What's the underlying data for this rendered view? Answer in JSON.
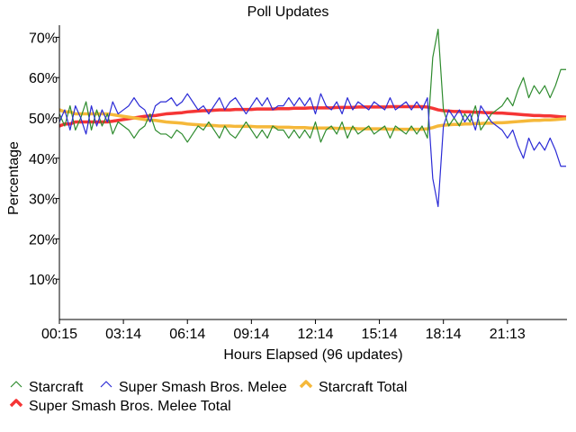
{
  "chart_data": {
    "type": "line",
    "title": "Poll Updates",
    "xlabel": "Hours Elapsed (96 updates)",
    "ylabel": "Percentage",
    "ylim": [
      0,
      73
    ],
    "y_ticks": [
      10,
      20,
      30,
      40,
      50,
      60,
      70
    ],
    "y_tick_labels": [
      "10%",
      "20%",
      "30%",
      "40%",
      "50%",
      "60%",
      "70%"
    ],
    "x_ticks": [
      0,
      12,
      24,
      36,
      48,
      60,
      72,
      84
    ],
    "x_tick_labels": [
      "00:15",
      "03:14",
      "06:14",
      "09:14",
      "12:14",
      "15:14",
      "18:14",
      "21:13"
    ],
    "x_range": [
      0,
      95
    ],
    "grid": false,
    "legend_position": "bottom",
    "series": [
      {
        "name": "Starcraft",
        "color": "#2e8b2e",
        "values": [
          51,
          48,
          53,
          47,
          50,
          54,
          47,
          52,
          48,
          51,
          46,
          49,
          48,
          47,
          45,
          47,
          48,
          51,
          47,
          46,
          46,
          45,
          47,
          46,
          44,
          46,
          48,
          47,
          49,
          47,
          45,
          48,
          46,
          45,
          47,
          49,
          47,
          45,
          47,
          45,
          48,
          47,
          47,
          45,
          47,
          45,
          47,
          45,
          49,
          44,
          47,
          48,
          46,
          49,
          45,
          48,
          46,
          47,
          48,
          46,
          47,
          48,
          45,
          48,
          47,
          46,
          48,
          46,
          48,
          45,
          65,
          72,
          52,
          48,
          50,
          48,
          51,
          49,
          53,
          47,
          49,
          51,
          52,
          53,
          55,
          53,
          57,
          60,
          55,
          58,
          56,
          58,
          55,
          58,
          62,
          62
        ]
      },
      {
        "name": "Super Smash Bros. Melee",
        "color": "#2b2bd6",
        "values": [
          49,
          52,
          47,
          53,
          50,
          46,
          53,
          48,
          52,
          49,
          54,
          51,
          52,
          53,
          55,
          53,
          52,
          49,
          53,
          54,
          54,
          55,
          53,
          54,
          56,
          54,
          52,
          53,
          51,
          53,
          55,
          52,
          54,
          55,
          53,
          51,
          53,
          55,
          53,
          55,
          52,
          53,
          53,
          55,
          53,
          55,
          53,
          55,
          51,
          56,
          53,
          52,
          54,
          51,
          55,
          52,
          54,
          53,
          52,
          54,
          53,
          52,
          55,
          52,
          53,
          54,
          52,
          54,
          52,
          55,
          35,
          28,
          48,
          52,
          50,
          52,
          49,
          51,
          47,
          53,
          51,
          49,
          48,
          47,
          45,
          47,
          43,
          40,
          45,
          42,
          44,
          42,
          45,
          42,
          38,
          38
        ]
      },
      {
        "name": "Starcraft Total",
        "color": "#f5b83a",
        "values": [
          52,
          51.5,
          51.5,
          51,
          51,
          51,
          51,
          51,
          51,
          51,
          50.8,
          50.6,
          50.4,
          50.2,
          50,
          49.8,
          49.6,
          49.5,
          49.4,
          49.2,
          49,
          48.9,
          48.8,
          48.7,
          48.5,
          48.4,
          48.3,
          48.2,
          48.2,
          48.1,
          48,
          48,
          48,
          47.9,
          47.9,
          47.9,
          47.9,
          47.8,
          47.8,
          47.8,
          47.8,
          47.7,
          47.7,
          47.7,
          47.6,
          47.6,
          47.6,
          47.5,
          47.5,
          47.5,
          47.5,
          47.5,
          47.4,
          47.4,
          47.4,
          47.4,
          47.3,
          47.3,
          47.3,
          47.3,
          47.3,
          47.3,
          47.2,
          47.2,
          47.2,
          47.2,
          47.2,
          47.2,
          47.2,
          47.3,
          47.6,
          48,
          48.2,
          48.3,
          48.4,
          48.4,
          48.5,
          48.5,
          48.6,
          48.6,
          48.7,
          48.7,
          48.8,
          48.8,
          48.9,
          49,
          49.1,
          49.2,
          49.3,
          49.4,
          49.4,
          49.5,
          49.5,
          49.6,
          49.7,
          49.8
        ]
      },
      {
        "name": "Super Smash Bros. Melee Total",
        "color": "#f53535",
        "values": [
          48,
          48.5,
          48.5,
          49,
          49,
          49,
          49,
          49,
          49,
          49,
          49.2,
          49.4,
          49.6,
          49.8,
          50,
          50.2,
          50.4,
          50.5,
          50.6,
          50.8,
          51,
          51.1,
          51.2,
          51.3,
          51.5,
          51.6,
          51.7,
          51.8,
          51.8,
          51.9,
          52,
          52,
          52,
          52.1,
          52.1,
          52.1,
          52.1,
          52.2,
          52.2,
          52.2,
          52.2,
          52.3,
          52.3,
          52.3,
          52.4,
          52.4,
          52.4,
          52.5,
          52.5,
          52.5,
          52.5,
          52.5,
          52.6,
          52.6,
          52.6,
          52.6,
          52.7,
          52.7,
          52.7,
          52.7,
          52.7,
          52.7,
          52.8,
          52.8,
          52.8,
          52.8,
          52.8,
          52.8,
          52.8,
          52.7,
          52.4,
          52,
          51.8,
          51.7,
          51.6,
          51.6,
          51.5,
          51.5,
          51.4,
          51.4,
          51.3,
          51.3,
          51.2,
          51.2,
          51.1,
          51,
          50.9,
          50.8,
          50.7,
          50.6,
          50.6,
          50.5,
          50.5,
          50.4,
          50.3,
          50.2
        ]
      }
    ]
  }
}
